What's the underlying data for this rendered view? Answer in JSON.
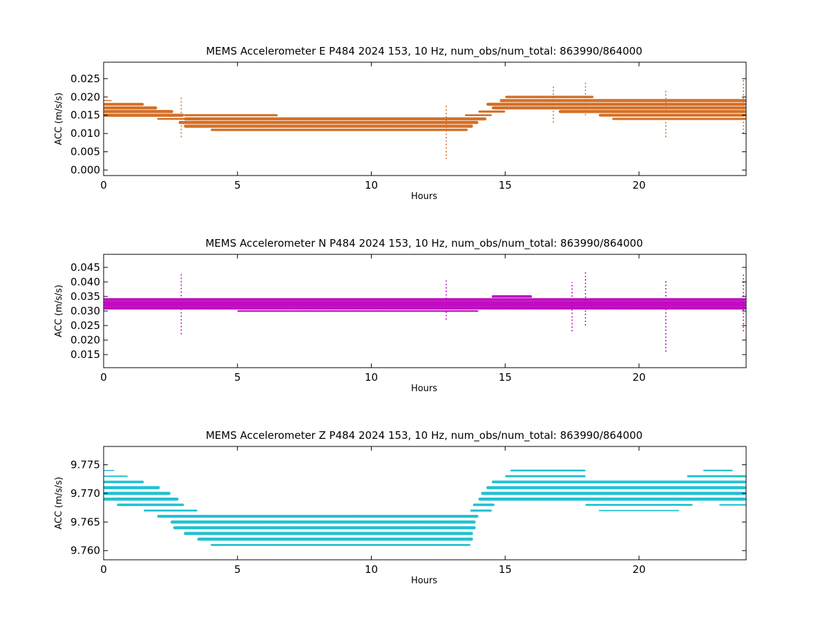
{
  "chart_data": [
    {
      "type": "scatter",
      "title": "MEMS Accelerometer E P484 2024 153, 10 Hz, num_obs/num_total: 863990/864000",
      "xlabel": "Hours",
      "ylabel": "ACC (m/s/s)",
      "xlim": [
        0,
        24
      ],
      "ylim": [
        -0.0015,
        0.0295
      ],
      "xticks": [
        0,
        5,
        10,
        15,
        20
      ],
      "yticks": [
        0.0,
        0.005,
        0.01,
        0.015,
        0.02,
        0.025
      ],
      "ytick_labels": [
        "0.000",
        "0.005",
        "0.010",
        "0.015",
        "0.020",
        "0.025"
      ],
      "grid": false,
      "color": "#d2691e",
      "bands": [
        {
          "y": 0.019,
          "x": [
            0,
            0.3
          ],
          "w": 0.3
        },
        {
          "y": 0.018,
          "x": [
            0,
            1.5
          ],
          "w": 0.9
        },
        {
          "y": 0.017,
          "x": [
            0,
            2.0
          ],
          "w": 1.0
        },
        {
          "y": 0.016,
          "x": [
            0,
            2.6
          ],
          "w": 1.0
        },
        {
          "y": 0.015,
          "x": [
            0,
            3.0
          ],
          "w": 1.0
        },
        {
          "y": 0.014,
          "x": [
            2.0,
            3.6
          ],
          "w": 0.6
        },
        {
          "y": 0.015,
          "x": [
            3.0,
            6.5
          ],
          "w": 0.7
        },
        {
          "y": 0.014,
          "x": [
            3.0,
            14.3
          ],
          "w": 1.0
        },
        {
          "y": 0.013,
          "x": [
            2.8,
            14.0
          ],
          "w": 1.0
        },
        {
          "y": 0.012,
          "x": [
            3.0,
            13.8
          ],
          "w": 1.0
        },
        {
          "y": 0.011,
          "x": [
            4.0,
            13.6
          ],
          "w": 0.8
        },
        {
          "y": 0.015,
          "x": [
            13.5,
            14.5
          ],
          "w": 0.6
        },
        {
          "y": 0.016,
          "x": [
            14.0,
            15.0
          ],
          "w": 0.7
        },
        {
          "y": 0.017,
          "x": [
            14.5,
            24.0
          ],
          "w": 1.0
        },
        {
          "y": 0.018,
          "x": [
            14.3,
            24.0
          ],
          "w": 1.0
        },
        {
          "y": 0.019,
          "x": [
            14.8,
            24.0
          ],
          "w": 1.0
        },
        {
          "y": 0.02,
          "x": [
            15.0,
            18.3
          ],
          "w": 0.8
        },
        {
          "y": 0.016,
          "x": [
            17.0,
            24.0
          ],
          "w": 1.0
        },
        {
          "y": 0.015,
          "x": [
            18.5,
            24.0
          ],
          "w": 0.9
        },
        {
          "y": 0.014,
          "x": [
            19.0,
            24.0
          ],
          "w": 0.7
        }
      ],
      "spikes": [
        {
          "x": 2.9,
          "y": [
            0.009,
            0.02
          ]
        },
        {
          "x": 12.8,
          "y": [
            0.003,
            0.018
          ]
        },
        {
          "x": 16.8,
          "y": [
            0.013,
            0.023
          ]
        },
        {
          "x": 18.0,
          "y": [
            0.015,
            0.024
          ]
        },
        {
          "x": 21.0,
          "y": [
            0.009,
            0.022
          ]
        },
        {
          "x": 23.9,
          "y": [
            0.01,
            0.025
          ]
        }
      ]
    },
    {
      "type": "scatter",
      "title": "MEMS Accelerometer N P484 2024 153, 10 Hz, num_obs/num_total: 863990/864000",
      "xlabel": "Hours",
      "ylabel": "ACC (m/s/s)",
      "xlim": [
        0,
        24
      ],
      "ylim": [
        0.0105,
        0.0495
      ],
      "xticks": [
        0,
        5,
        10,
        15,
        20
      ],
      "yticks": [
        0.015,
        0.02,
        0.025,
        0.03,
        0.035,
        0.04,
        0.045
      ],
      "ytick_labels": [
        "0.015",
        "0.020",
        "0.025",
        "0.030",
        "0.035",
        "0.040",
        "0.045"
      ],
      "grid": false,
      "color": "#bf00bf",
      "bands": [
        {
          "y": 0.034,
          "x": [
            0,
            24.0
          ],
          "w": 0.8
        },
        {
          "y": 0.033,
          "x": [
            0,
            24.0
          ],
          "w": 1.0
        },
        {
          "y": 0.032,
          "x": [
            0,
            24.0
          ],
          "w": 1.0
        },
        {
          "y": 0.031,
          "x": [
            0,
            24.0
          ],
          "w": 0.9
        },
        {
          "y": 0.035,
          "x": [
            14.5,
            16.0
          ],
          "w": 0.8
        },
        {
          "y": 0.03,
          "x": [
            5.0,
            14.0
          ],
          "w": 0.5
        }
      ],
      "spikes": [
        {
          "x": 2.9,
          "y": [
            0.022,
            0.043
          ]
        },
        {
          "x": 12.8,
          "y": [
            0.027,
            0.041
          ]
        },
        {
          "x": 17.5,
          "y": [
            0.023,
            0.04
          ]
        },
        {
          "x": 18.0,
          "y": [
            0.025,
            0.044
          ]
        },
        {
          "x": 21.0,
          "y": [
            0.016,
            0.041
          ]
        },
        {
          "x": 23.9,
          "y": [
            0.023,
            0.043
          ]
        }
      ]
    },
    {
      "type": "scatter",
      "title": "MEMS Accelerometer Z P484 2024 153, 10 Hz, num_obs/num_total: 863990/864000",
      "xlabel": "Hours",
      "ylabel": "ACC (m/s/s)",
      "xlim": [
        0,
        24
      ],
      "ylim": [
        9.7584,
        9.7782
      ],
      "xticks": [
        0,
        5,
        10,
        15,
        20
      ],
      "yticks": [
        9.76,
        9.765,
        9.77,
        9.775
      ],
      "ytick_labels": [
        "9.760",
        "9.765",
        "9.770",
        "9.775"
      ],
      "grid": false,
      "color": "#17becf",
      "bands": [
        {
          "y": 9.774,
          "x": [
            0,
            0.4
          ],
          "w": 0.3
        },
        {
          "y": 9.773,
          "x": [
            0,
            0.9
          ],
          "w": 0.4
        },
        {
          "y": 9.772,
          "x": [
            0,
            1.5
          ],
          "w": 0.8
        },
        {
          "y": 9.771,
          "x": [
            0,
            2.1
          ],
          "w": 1.0
        },
        {
          "y": 9.77,
          "x": [
            0,
            2.5
          ],
          "w": 1.0
        },
        {
          "y": 9.769,
          "x": [
            0,
            2.8
          ],
          "w": 1.0
        },
        {
          "y": 9.768,
          "x": [
            0.5,
            3.0
          ],
          "w": 0.8
        },
        {
          "y": 9.767,
          "x": [
            1.5,
            3.5
          ],
          "w": 0.6
        },
        {
          "y": 9.766,
          "x": [
            2.0,
            14.0
          ],
          "w": 0.9
        },
        {
          "y": 9.765,
          "x": [
            2.5,
            13.9
          ],
          "w": 1.0
        },
        {
          "y": 9.764,
          "x": [
            2.6,
            13.9
          ],
          "w": 1.0
        },
        {
          "y": 9.763,
          "x": [
            3.0,
            13.8
          ],
          "w": 1.0
        },
        {
          "y": 9.762,
          "x": [
            3.5,
            13.8
          ],
          "w": 1.0
        },
        {
          "y": 9.761,
          "x": [
            4.0,
            13.7
          ],
          "w": 0.6
        },
        {
          "y": 9.767,
          "x": [
            13.7,
            14.5
          ],
          "w": 0.7
        },
        {
          "y": 9.768,
          "x": [
            13.8,
            14.6
          ],
          "w": 0.8
        },
        {
          "y": 9.769,
          "x": [
            14.0,
            24.0
          ],
          "w": 1.0
        },
        {
          "y": 9.77,
          "x": [
            14.1,
            24.0
          ],
          "w": 1.0
        },
        {
          "y": 9.771,
          "x": [
            14.3,
            24.0
          ],
          "w": 1.0
        },
        {
          "y": 9.772,
          "x": [
            14.5,
            24.0
          ],
          "w": 0.9
        },
        {
          "y": 9.773,
          "x": [
            15.0,
            18.0
          ],
          "w": 0.7
        },
        {
          "y": 9.774,
          "x": [
            15.2,
            18.0
          ],
          "w": 0.6
        },
        {
          "y": 9.768,
          "x": [
            18.0,
            22.0
          ],
          "w": 0.6
        },
        {
          "y": 9.767,
          "x": [
            18.5,
            21.5
          ],
          "w": 0.4
        },
        {
          "y": 9.773,
          "x": [
            21.8,
            24.0
          ],
          "w": 0.7
        },
        {
          "y": 9.774,
          "x": [
            22.4,
            23.5
          ],
          "w": 0.5
        },
        {
          "y": 9.768,
          "x": [
            23.0,
            24.0
          ],
          "w": 0.5
        }
      ],
      "spikes": []
    }
  ]
}
